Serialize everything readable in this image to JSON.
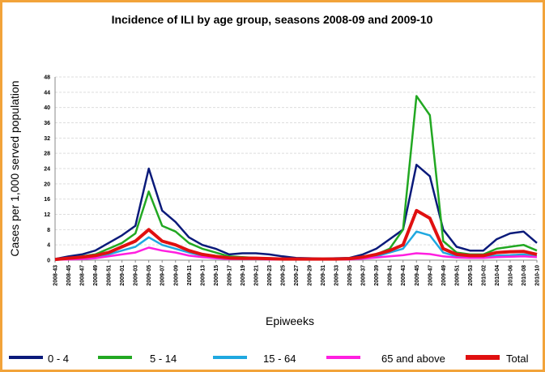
{
  "chart_data": {
    "type": "line",
    "title": "Incidence of ILI by age group, seasons 2008-09 and 2009-10",
    "y_label": "Cases per 1,000 served population",
    "x_label": "Epiweeks",
    "categories": [
      "2008-43",
      "2008-45",
      "2008-47",
      "2008-49",
      "2008-51",
      "2009-01",
      "2009-03",
      "2009-05",
      "2009-07",
      "2009-09",
      "2009-11",
      "2009-13",
      "2009-15",
      "2009-17",
      "2009-19",
      "2009-21",
      "2009-23",
      "2009-25",
      "2009-27",
      "2009-29",
      "2009-31",
      "2009-33",
      "2009-35",
      "2009-37",
      "2009-39",
      "2009-41",
      "2009-43",
      "2009-45",
      "2009-47",
      "2009-49",
      "2009-51",
      "2009-53",
      "2010-02",
      "2010-04",
      "2010-06",
      "2010-08",
      "2010-10"
    ],
    "series": [
      {
        "name": "0 - 4",
        "color": "#0a1a7a",
        "values": [
          0.3,
          1,
          1.5,
          2.5,
          4.5,
          6.5,
          9,
          24,
          13,
          10,
          6,
          4,
          3,
          1.5,
          1.8,
          1.8,
          1.5,
          1,
          0.6,
          0.5,
          0.4,
          0.5,
          0.6,
          1.5,
          3,
          5.5,
          8,
          25,
          22,
          8,
          3.5,
          2.5,
          2.5,
          5.5,
          7,
          7.5,
          4.5
        ]
      },
      {
        "name": "5 - 14",
        "color": "#22a822",
        "values": [
          0.2,
          0.5,
          1,
          1.5,
          3,
          4.5,
          7,
          18,
          9,
          7.5,
          4.5,
          3,
          2,
          1,
          0.8,
          0.6,
          0.5,
          0.4,
          0.3,
          0.3,
          0.3,
          0.3,
          0.4,
          0.8,
          1.5,
          3,
          8,
          43,
          38,
          5,
          2,
          1.5,
          1.5,
          3,
          3.5,
          4,
          2.5
        ]
      },
      {
        "name": "15 - 64",
        "color": "#1fa8e0",
        "values": [
          0.1,
          0.3,
          0.5,
          0.8,
          1.5,
          2.5,
          3.5,
          6,
          4,
          3,
          2,
          1.2,
          0.8,
          0.5,
          0.4,
          0.4,
          0.3,
          0.3,
          0.2,
          0.2,
          0.2,
          0.2,
          0.3,
          0.5,
          1,
          2,
          3,
          7.5,
          6.5,
          2,
          1,
          0.8,
          0.8,
          1.2,
          1.3,
          1.5,
          1
        ]
      },
      {
        "name": "65 and above",
        "color": "#ff1fe0",
        "values": [
          0.1,
          0.2,
          0.3,
          0.5,
          1,
          1.5,
          2,
          3.3,
          2.5,
          2,
          1.2,
          0.8,
          0.5,
          0.3,
          0.3,
          0.3,
          0.2,
          0.2,
          0.2,
          0.2,
          0.2,
          0.2,
          0.2,
          0.4,
          0.7,
          1,
          1.3,
          1.8,
          1.6,
          1,
          0.7,
          0.6,
          0.6,
          0.8,
          0.9,
          1,
          0.8
        ]
      },
      {
        "name": "Total",
        "color": "#e01010",
        "values": [
          0.2,
          0.5,
          0.8,
          1.2,
          2,
          3.5,
          5,
          8,
          5,
          4,
          2.5,
          1.5,
          1,
          0.6,
          0.5,
          0.5,
          0.4,
          0.3,
          0.3,
          0.3,
          0.3,
          0.3,
          0.4,
          0.8,
          1.5,
          2.5,
          4,
          13,
          11,
          3,
          1.5,
          1.2,
          1.2,
          2,
          2.2,
          2.3,
          1.5
        ]
      }
    ],
    "ylim": [
      0,
      48
    ],
    "yticks": [
      0,
      4,
      8,
      12,
      16,
      20,
      24,
      28,
      32,
      36,
      40,
      44,
      48
    ],
    "grid": true
  }
}
